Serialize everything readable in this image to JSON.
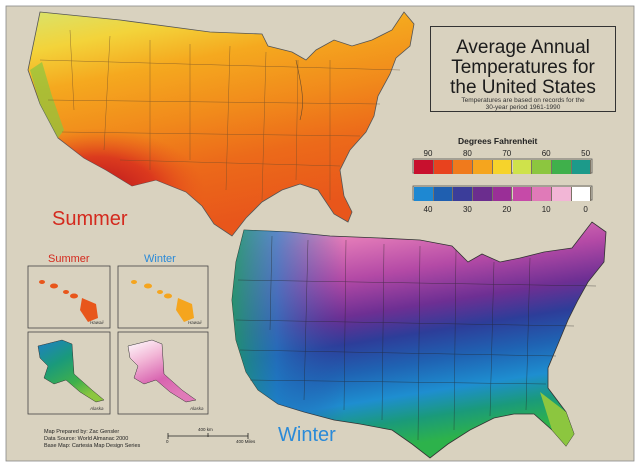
{
  "title": {
    "line1": "Average Annual",
    "line2": "Temperatures for",
    "line3": "the United States",
    "sub1": "Temperatures are based on records for the",
    "sub2": "30-year period 1961-1990"
  },
  "legend": {
    "title": "Degrees Fahrenheit",
    "summer_ticks": [
      "90",
      "80",
      "70",
      "60",
      "50"
    ],
    "summer_colors": [
      "#c8102e",
      "#e8421e",
      "#f07a1c",
      "#f5a51e",
      "#f6d32b",
      "#cfe24b",
      "#8cc63f",
      "#3fb04b",
      "#1c9a8a"
    ],
    "winter_ticks": [
      "40",
      "30",
      "20",
      "10",
      "0"
    ],
    "winter_colors": [
      "#1e88d2",
      "#1f5fb0",
      "#3b3d9a",
      "#6b2d8e",
      "#9a2f97",
      "#c64aa8",
      "#e07ab8",
      "#f2b6d6",
      "#ffffff"
    ]
  },
  "labels": {
    "summer": "Summer",
    "winter": "Winter",
    "inset_summer": "Summer",
    "inset_winter": "Winter",
    "hawaii_1": "Hawaii",
    "hawaii_2": "Hawaii",
    "alaska_1": "Alaska",
    "alaska_2": "Alaska",
    "summer_color": "#d42a1e",
    "winter_color": "#2a8ad8"
  },
  "credits": {
    "line1": "Map Prepared by: Zac Gensler",
    "line2": "Data Source: World Almanac 2000",
    "line3": "Base Map: Cartesia Map Design Series"
  },
  "scale": {
    "mid": "400 km",
    "end": "400 Miles",
    "zero": "0"
  }
}
